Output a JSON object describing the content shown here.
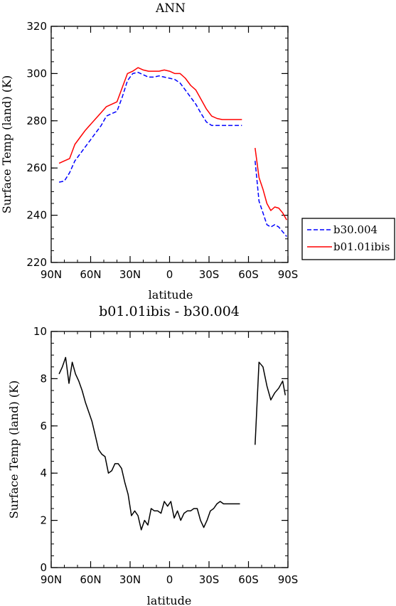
{
  "chart_data": [
    {
      "type": "line",
      "title": "ANN",
      "xlabel": "latitude",
      "ylabel": "Surface Temp (land) (K)",
      "xlim": [
        90,
        -90
      ],
      "ylim": [
        220,
        320
      ],
      "xticks": [
        90,
        60,
        30,
        0,
        -30,
        -60,
        -90
      ],
      "xtick_labels": [
        "90N",
        "60N",
        "30N",
        "0",
        "30S",
        "60S",
        "90S"
      ],
      "yticks": [
        220,
        240,
        260,
        280,
        300,
        320
      ],
      "ytick_labels": [
        "220",
        "240",
        "260",
        "280",
        "300",
        "320"
      ],
      "legend_position": "right",
      "series": [
        {
          "name": "b30.004",
          "color": "#0000ff",
          "dash": "dashed",
          "segments": [
            {
              "x": [
                84,
                80,
                76,
                72,
                68,
                64,
                60,
                56,
                52,
                48,
                44,
                40,
                36,
                32,
                28,
                24,
                20,
                16,
                12,
                8,
                4,
                0,
                -4,
                -8,
                -12,
                -16,
                -20,
                -24,
                -28,
                -32,
                -36,
                -40,
                -44,
                -48,
                -52,
                -55
              ],
              "y": [
                254,
                254.5,
                258,
                263,
                266,
                269,
                272,
                275,
                278,
                282,
                283,
                284,
                290,
                297,
                300,
                300.5,
                299.5,
                298.5,
                298.5,
                299,
                298.5,
                298,
                297.5,
                296,
                293,
                290,
                287,
                283,
                279.5,
                278,
                278,
                278,
                278,
                278,
                278,
                278
              ]
            },
            {
              "x": [
                -65,
                -68,
                -71,
                -74,
                -77,
                -80,
                -83,
                -86,
                -89
              ],
              "y": [
                263,
                246,
                241,
                236,
                235,
                236,
                235,
                233,
                231
              ]
            }
          ]
        },
        {
          "name": "b01.01ibis",
          "color": "#ff0000",
          "dash": "solid",
          "segments": [
            {
              "x": [
                84,
                80,
                76,
                72,
                68,
                64,
                60,
                56,
                52,
                48,
                44,
                40,
                36,
                32,
                28,
                24,
                20,
                16,
                12,
                8,
                4,
                0,
                -4,
                -8,
                -12,
                -16,
                -20,
                -24,
                -28,
                -32,
                -36,
                -40,
                -44,
                -48,
                -52,
                -55
              ],
              "y": [
                262,
                263,
                264,
                270,
                273,
                276,
                278.5,
                281,
                283.5,
                286,
                287,
                288,
                294,
                300,
                301,
                302.5,
                301.5,
                301,
                301,
                301,
                301.5,
                301,
                300,
                300,
                298,
                295,
                293,
                289,
                285,
                282,
                281,
                280.5,
                280.5,
                280.5,
                280.5,
                280.5
              ]
            },
            {
              "x": [
                -65,
                -68,
                -71,
                -74,
                -77,
                -80,
                -83,
                -86,
                -89
              ],
              "y": [
                268.5,
                256,
                251,
                245,
                242,
                243.5,
                243,
                241,
                238
              ]
            }
          ]
        }
      ]
    },
    {
      "type": "line",
      "title": "b01.01ibis - b30.004",
      "xlabel": "latitude",
      "ylabel": "Surface Temp (land) (K)",
      "xlim": [
        90,
        -90
      ],
      "ylim": [
        0,
        10
      ],
      "xticks": [
        90,
        60,
        30,
        0,
        -30,
        -60,
        -90
      ],
      "xtick_labels": [
        "90N",
        "60N",
        "30N",
        "0",
        "30S",
        "60S",
        "90S"
      ],
      "yticks": [
        0,
        2,
        4,
        6,
        8,
        10
      ],
      "ytick_labels": [
        "0",
        "2",
        "4",
        "6",
        "8",
        "10"
      ],
      "series": [
        {
          "color": "#000000",
          "dash": "solid",
          "segments": [
            {
              "x": [
                84,
                81.5,
                79,
                76.5,
                74,
                71.5,
                69,
                66.5,
                64,
                61.5,
                59,
                56.5,
                54,
                51.5,
                49,
                46.5,
                44,
                41.5,
                39,
                36.5,
                34,
                31.5,
                29,
                26.5,
                24,
                21.5,
                19,
                16.5,
                14,
                11.5,
                9,
                6.5,
                4,
                1.5,
                -1,
                -3.5,
                -6,
                -8.5,
                -11,
                -13.5,
                -16,
                -18.5,
                -21,
                -23.5,
                -26,
                -28.5,
                -31,
                -33.5,
                -36,
                -38.5,
                -41,
                -43.5,
                -46,
                -48.5,
                -51,
                -53.5
              ],
              "y": [
                8.2,
                8.5,
                8.9,
                7.8,
                8.7,
                8.2,
                7.9,
                7.5,
                7.0,
                6.6,
                6.2,
                5.6,
                5.0,
                4.8,
                4.7,
                4.0,
                4.1,
                4.4,
                4.4,
                4.2,
                3.6,
                3.1,
                2.2,
                2.4,
                2.2,
                1.6,
                2.0,
                1.8,
                2.5,
                2.4,
                2.4,
                2.3,
                2.8,
                2.6,
                2.8,
                2.1,
                2.4,
                2.0,
                2.3,
                2.4,
                2.4,
                2.5,
                2.5,
                2.0,
                1.7,
                2.0,
                2.4,
                2.5,
                2.7,
                2.8,
                2.7,
                2.7,
                2.7,
                2.7,
                2.7,
                2.7
              ]
            },
            {
              "x": [
                -65,
                -68,
                -71,
                -74,
                -77,
                -80,
                -83,
                -86,
                -88
              ],
              "y": [
                5.2,
                8.7,
                8.5,
                7.7,
                7.1,
                7.4,
                7.6,
                7.9,
                7.3
              ]
            }
          ]
        }
      ]
    }
  ]
}
